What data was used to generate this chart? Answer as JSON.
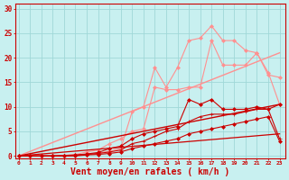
{
  "background_color": "#c8f0f0",
  "grid_color": "#a0d8d8",
  "xlabel": "Vent moyen/en rafales ( km/h )",
  "xlabel_color": "#cc0000",
  "xlabel_fontsize": 7,
  "xtick_labels": [
    "0",
    "1",
    "2",
    "3",
    "4",
    "5",
    "6",
    "7",
    "8",
    "9",
    "10",
    "11",
    "12",
    "13",
    "14",
    "15",
    "16",
    "17",
    "18",
    "19",
    "20",
    "21",
    "22",
    "23"
  ],
  "ytick_values": [
    0,
    5,
    10,
    15,
    20,
    25,
    30
  ],
  "xlim": [
    -0.3,
    23.5
  ],
  "ylim": [
    -0.5,
    31
  ],
  "line_light1": {
    "x": [
      0,
      1,
      2,
      3,
      4,
      5,
      6,
      7,
      8,
      9,
      10,
      11,
      12,
      13,
      14,
      15,
      16,
      17,
      18,
      19,
      20,
      21,
      22,
      23
    ],
    "y": [
      0,
      0,
      0,
      0,
      0,
      0.2,
      0.3,
      0.5,
      1.0,
      1.5,
      9.0,
      10.0,
      18.0,
      14.0,
      18.0,
      23.5,
      24.0,
      26.5,
      23.5,
      23.5,
      21.5,
      21.0,
      16.5,
      16.0
    ],
    "color": "#ff9090",
    "linewidth": 0.8,
    "marker": "D",
    "markersize": 2.0
  },
  "line_light2": {
    "x": [
      0,
      1,
      2,
      3,
      4,
      5,
      6,
      7,
      8,
      9,
      10,
      11,
      12,
      13,
      14,
      15,
      16,
      17,
      18,
      19,
      20,
      21,
      22,
      23
    ],
    "y": [
      0,
      0,
      0,
      0,
      0.1,
      0.3,
      0.8,
      1.2,
      2.5,
      3.5,
      5.0,
      5.5,
      14.0,
      13.5,
      13.5,
      14.0,
      14.0,
      23.5,
      18.5,
      18.5,
      18.5,
      21.0,
      17.0,
      10.5
    ],
    "color": "#ff9090",
    "linewidth": 0.8,
    "marker": "D",
    "markersize": 2.0
  },
  "trend_light": {
    "x": [
      0,
      23
    ],
    "y": [
      0,
      21.0
    ],
    "color": "#ff9090",
    "linewidth": 1.0,
    "linestyle": "-"
  },
  "line_dark1": {
    "x": [
      0,
      1,
      2,
      3,
      4,
      5,
      6,
      7,
      8,
      9,
      10,
      11,
      12,
      13,
      14,
      15,
      16,
      17,
      18,
      19,
      20,
      21,
      22,
      23
    ],
    "y": [
      0,
      0,
      0,
      0,
      0.1,
      0.2,
      0.4,
      0.7,
      1.5,
      2.0,
      3.5,
      4.5,
      5.0,
      5.5,
      6.0,
      11.5,
      10.5,
      11.5,
      9.5,
      9.5,
      9.5,
      10.0,
      9.5,
      10.5
    ],
    "color": "#cc0000",
    "linewidth": 0.8,
    "marker": "D",
    "markersize": 2.0
  },
  "line_dark2": {
    "x": [
      0,
      1,
      2,
      3,
      4,
      5,
      6,
      7,
      8,
      9,
      10,
      11,
      12,
      13,
      14,
      15,
      16,
      17,
      18,
      19,
      20,
      21,
      22,
      23
    ],
    "y": [
      0,
      0,
      0,
      0,
      0,
      0.1,
      0.3,
      0.5,
      0.8,
      1.2,
      2.5,
      3.0,
      4.0,
      5.0,
      5.5,
      7.0,
      8.0,
      8.5,
      8.5,
      8.5,
      9.0,
      9.5,
      9.5,
      3.5
    ],
    "color": "#cc0000",
    "linewidth": 0.8,
    "marker": "+",
    "markersize": 3.0
  },
  "line_dark3": {
    "x": [
      0,
      1,
      2,
      3,
      4,
      5,
      6,
      7,
      8,
      9,
      10,
      11,
      12,
      13,
      14,
      15,
      16,
      17,
      18,
      19,
      20,
      21,
      22,
      23
    ],
    "y": [
      0,
      0,
      0,
      0,
      0,
      0,
      0.2,
      0.3,
      0.5,
      0.8,
      1.5,
      2.0,
      2.5,
      3.0,
      3.5,
      4.5,
      5.0,
      5.5,
      6.0,
      6.5,
      7.0,
      7.5,
      8.0,
      3.0
    ],
    "color": "#cc0000",
    "linewidth": 0.8,
    "marker": "D",
    "markersize": 2.0
  },
  "trend_dark": {
    "x": [
      0,
      23
    ],
    "y": [
      0,
      10.5
    ],
    "color": "#cc0000",
    "linewidth": 1.0,
    "linestyle": "-"
  },
  "trend_dark2": {
    "x": [
      0,
      23
    ],
    "y": [
      0,
      4.5
    ],
    "color": "#cc0000",
    "linewidth": 0.9,
    "linestyle": "-"
  }
}
